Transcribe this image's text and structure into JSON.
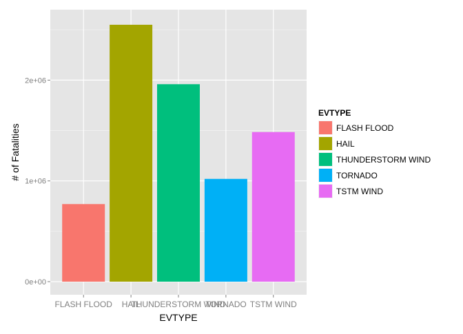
{
  "chart_data": {
    "type": "bar",
    "xlabel": "EVTYPE",
    "ylabel": "# of Fatalities",
    "categories": [
      "FLASH FLOOD",
      "HAIL",
      "THUNDERSTORM WIND",
      "TORNADO",
      "TSTM WIND"
    ],
    "values": [
      770000,
      2550000,
      1960000,
      1020000,
      1485000
    ],
    "colors": [
      "#F8766D",
      "#A3A500",
      "#00BF7D",
      "#00B0F6",
      "#E76BF3"
    ],
    "ylim": [
      -130000,
      2700000
    ],
    "yticks": [
      0,
      1000000,
      2000000
    ],
    "ytick_labels": [
      "0e+00",
      "1e+06",
      "2e+06"
    ],
    "grid": true,
    "panel_background": "#E5E5E5",
    "legend": {
      "title": "EVTYPE",
      "position": "right",
      "items": [
        "FLASH FLOOD",
        "HAIL",
        "THUNDERSTORM WIND",
        "TORNADO",
        "TSTM WIND"
      ]
    }
  }
}
